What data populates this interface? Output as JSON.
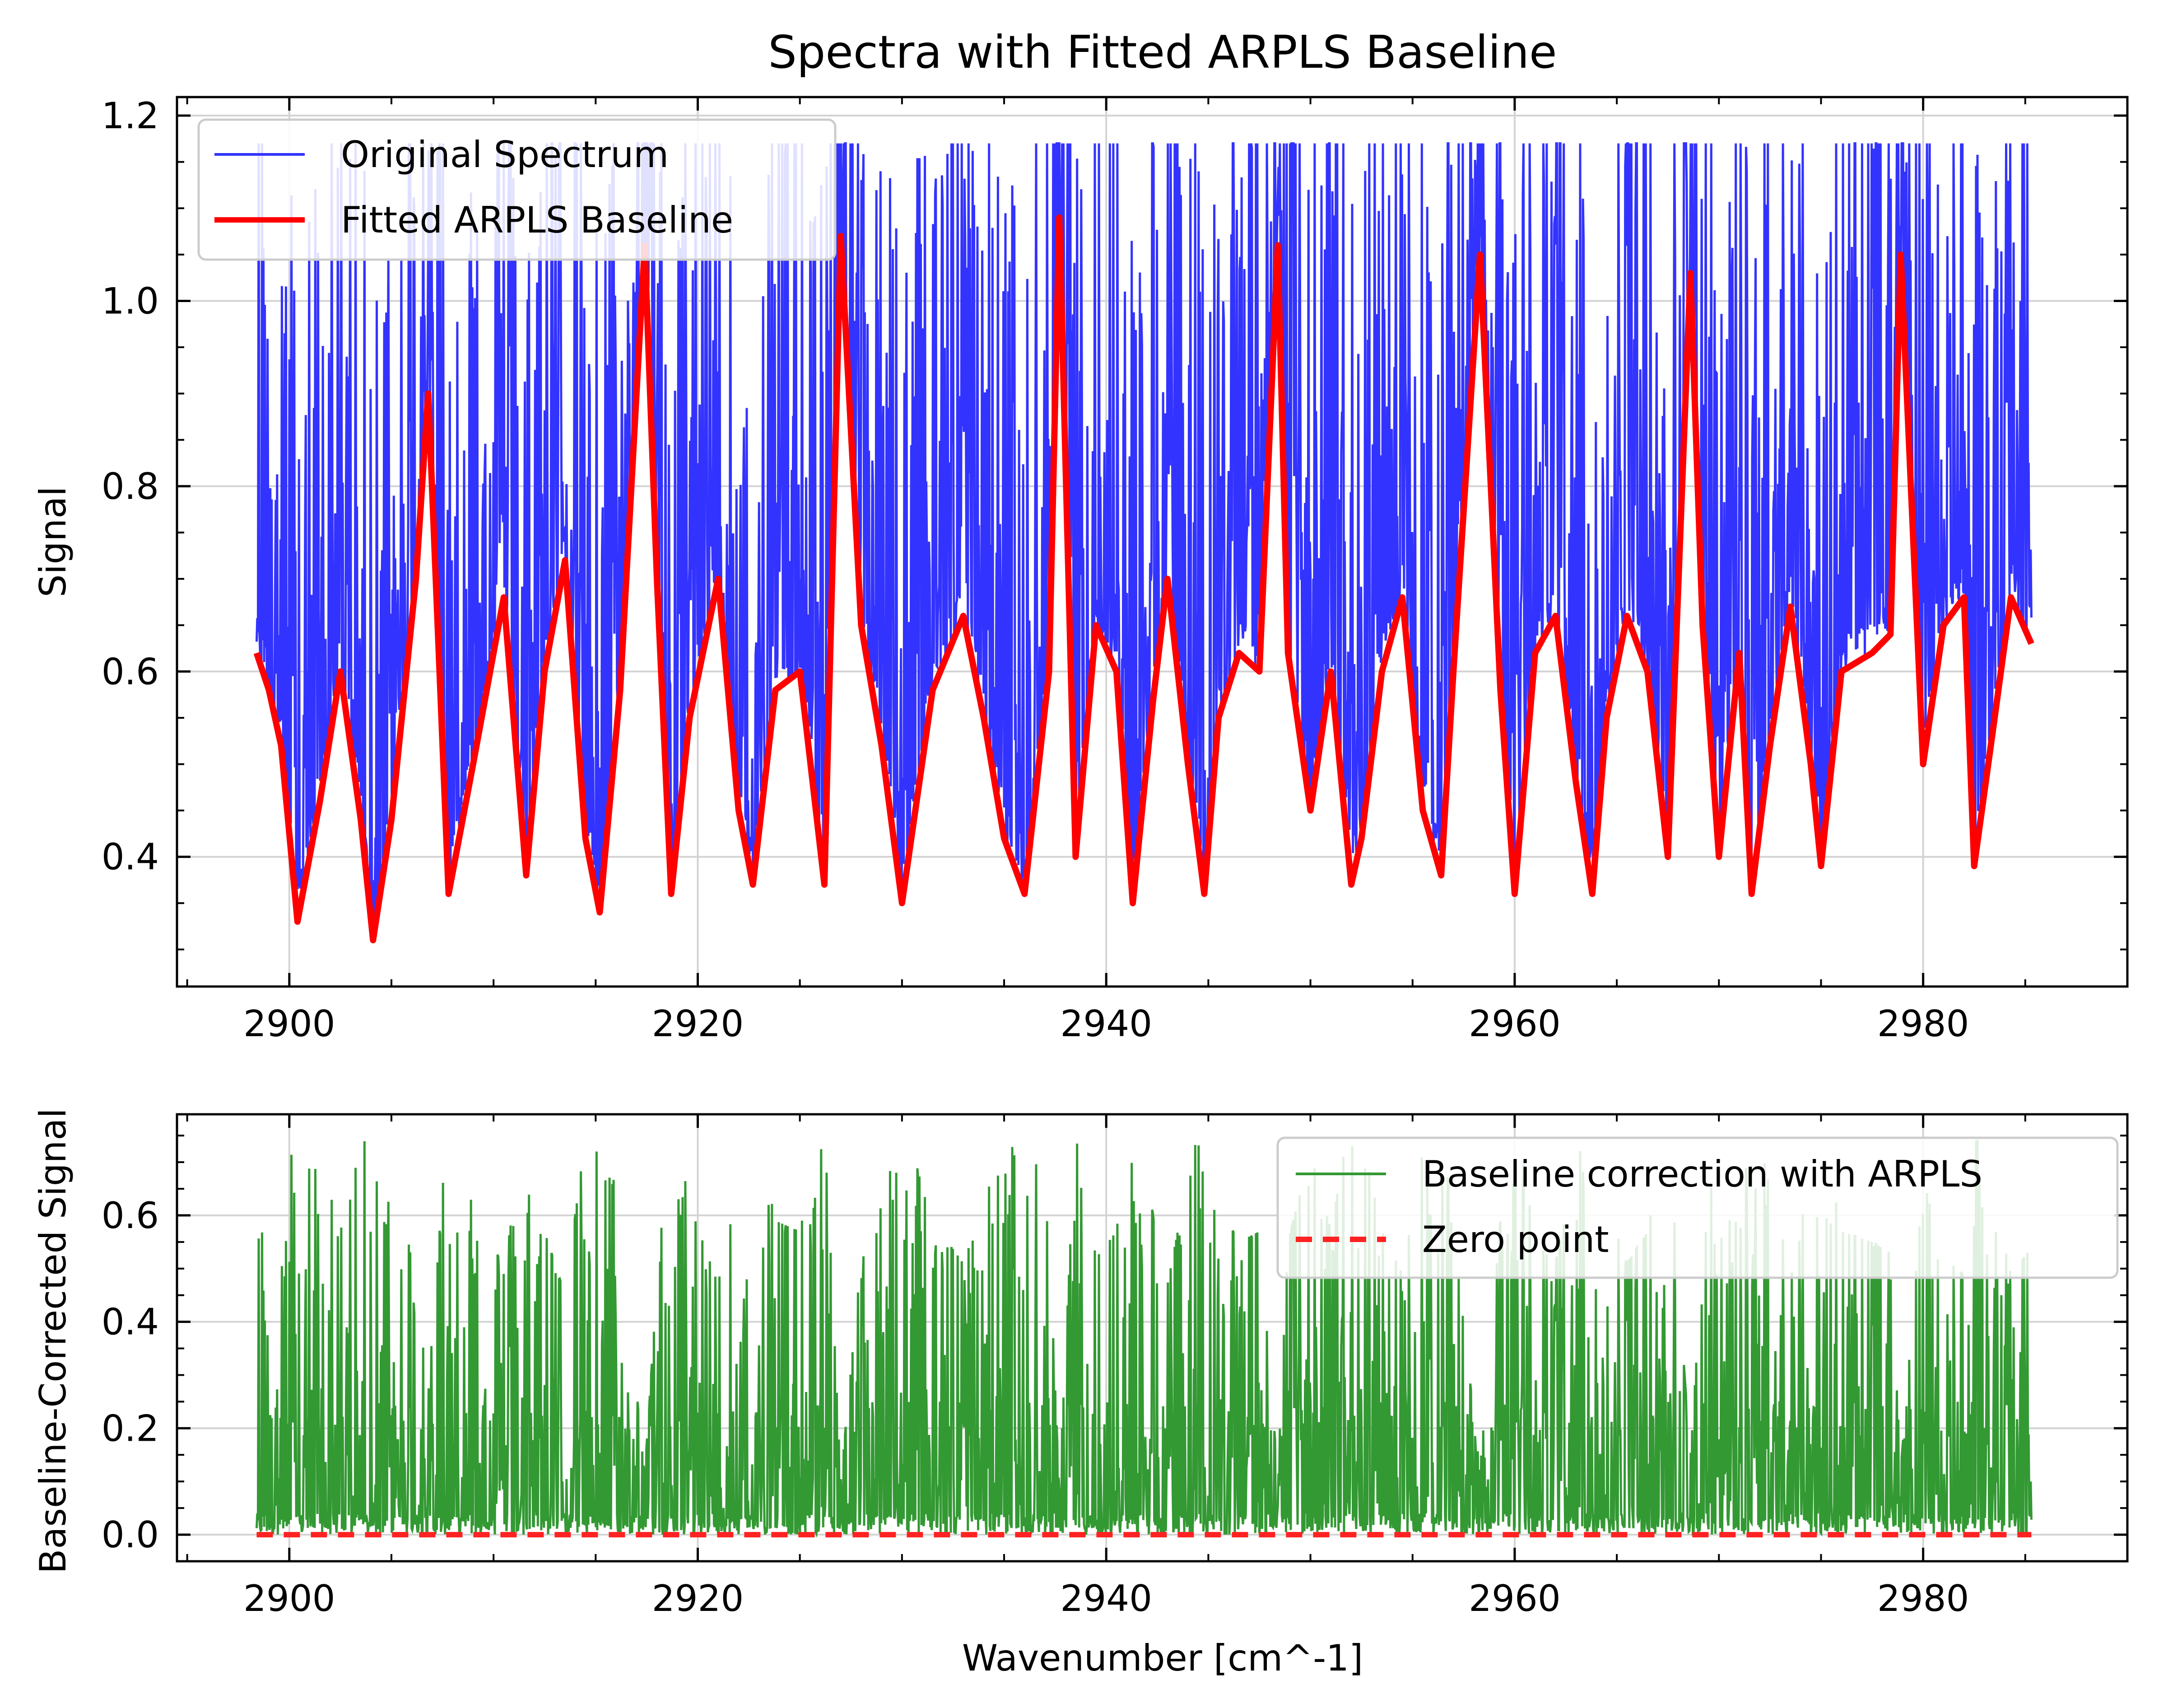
{
  "figure": {
    "title": "Spectra with Fitted ARPLS Baseline",
    "background": "#ffffff"
  },
  "colors": {
    "original": "#3333ff",
    "baseline": "#ff0000",
    "corrected": "#339933",
    "zero": "#ff2222",
    "grid": "#d3d3d3",
    "axes": "#000000"
  },
  "chart_data": [
    {
      "type": "line",
      "title": "Spectra with Fitted ARPLS Baseline",
      "xlabel": "",
      "ylabel": "Signal",
      "xlim": [
        2894.5,
        2990
      ],
      "ylim": [
        0.26,
        1.22
      ],
      "xticks": [
        2900,
        2920,
        2940,
        2960,
        2980
      ],
      "xtick_labels": [
        "2900",
        "2920",
        "2940",
        "2960",
        "2980"
      ],
      "yticks": [
        0.4,
        0.6,
        0.8,
        1.0,
        1.2
      ],
      "ytick_labels": [
        "0.4",
        "0.6",
        "0.8",
        "1.0",
        "1.2"
      ],
      "grid": true,
      "legend_position": "top-left",
      "x_range": [
        2898.4,
        2985.3
      ],
      "series": [
        {
          "name": "Original Spectrum",
          "color": "#3333ff",
          "style": "solid",
          "representation": "dense spectrum oscillating between the baseline and ~1.05–1.10",
          "peak_max": 1.17
        },
        {
          "name": "Fitted ARPLS Baseline",
          "color": "#ff0000",
          "style": "solid",
          "x": [
            2898.4,
            2899.0,
            2899.6,
            2900.4,
            2901.5,
            2902.5,
            2903.5,
            2904.1,
            2905.0,
            2906.2,
            2906.8,
            2907.8,
            2909.0,
            2910.5,
            2911.6,
            2912.5,
            2913.5,
            2914.5,
            2915.2,
            2916.2,
            2917.4,
            2918.0,
            2918.7,
            2919.6,
            2921.0,
            2922.0,
            2922.7,
            2923.8,
            2925.0,
            2926.2,
            2927.0,
            2928.0,
            2929.0,
            2930.0,
            2931.5,
            2933.0,
            2934.0,
            2935.0,
            2936.0,
            2937.2,
            2937.7,
            2938.5,
            2939.5,
            2940.5,
            2941.3,
            2942.3,
            2943.0,
            2944.0,
            2944.8,
            2945.5,
            2946.5,
            2947.5,
            2948.4,
            2948.9,
            2950.0,
            2951.0,
            2952.0,
            2952.5,
            2953.5,
            2954.5,
            2955.5,
            2956.4,
            2957.0,
            2958.3,
            2959.3,
            2960.0,
            2961.0,
            2962.0,
            2963.0,
            2963.8,
            2964.5,
            2965.5,
            2966.5,
            2967.5,
            2968.6,
            2969.2,
            2970.0,
            2971.0,
            2971.6,
            2972.5,
            2973.5,
            2974.5,
            2975.0,
            2976.0,
            2977.5,
            2978.4,
            2978.9,
            2980.0,
            2981.0,
            2982.0,
            2982.5,
            2983.5,
            2984.3,
            2985.3
          ],
          "y": [
            0.62,
            0.58,
            0.52,
            0.33,
            0.46,
            0.6,
            0.44,
            0.31,
            0.44,
            0.7,
            0.9,
            0.36,
            0.5,
            0.68,
            0.38,
            0.6,
            0.72,
            0.42,
            0.34,
            0.58,
            1.06,
            0.7,
            0.36,
            0.55,
            0.7,
            0.45,
            0.37,
            0.58,
            0.6,
            0.37,
            1.07,
            0.65,
            0.52,
            0.35,
            0.58,
            0.66,
            0.55,
            0.42,
            0.36,
            0.6,
            1.09,
            0.4,
            0.65,
            0.6,
            0.35,
            0.57,
            0.7,
            0.5,
            0.36,
            0.55,
            0.62,
            0.6,
            1.06,
            0.62,
            0.45,
            0.6,
            0.37,
            0.42,
            0.6,
            0.68,
            0.45,
            0.38,
            0.6,
            1.05,
            0.58,
            0.36,
            0.62,
            0.66,
            0.48,
            0.36,
            0.55,
            0.66,
            0.6,
            0.4,
            1.03,
            0.65,
            0.4,
            0.62,
            0.36,
            0.52,
            0.67,
            0.5,
            0.39,
            0.6,
            0.62,
            0.64,
            1.05,
            0.5,
            0.65,
            0.68,
            0.39,
            0.55,
            0.68,
            0.63
          ]
        }
      ]
    },
    {
      "type": "line",
      "title": "",
      "xlabel": "Wavenumber [cm^-1]",
      "ylabel": "Baseline-Corrected Signal",
      "xlim": [
        2894.5,
        2990
      ],
      "ylim": [
        -0.05,
        0.79
      ],
      "xticks": [
        2900,
        2920,
        2940,
        2960,
        2980
      ],
      "xtick_labels": [
        "2900",
        "2920",
        "2940",
        "2960",
        "2980"
      ],
      "yticks": [
        0.0,
        0.2,
        0.4,
        0.6
      ],
      "ytick_labels": [
        "0.0",
        "0.2",
        "0.4",
        "0.6"
      ],
      "grid": true,
      "legend_position": "top-right",
      "x_range": [
        2898.4,
        2985.3
      ],
      "series": [
        {
          "name": "Baseline correction with ARPLS",
          "color": "#339933",
          "style": "solid",
          "representation": "dense non-negative residual spectrum, peaks mostly 0.2–0.75",
          "peak_max": 0.75
        },
        {
          "name": "Zero point",
          "color": "#ff2222",
          "style": "dashed",
          "x": [
            2898.4,
            2985.3
          ],
          "y": [
            0.0,
            0.0
          ]
        }
      ]
    }
  ]
}
